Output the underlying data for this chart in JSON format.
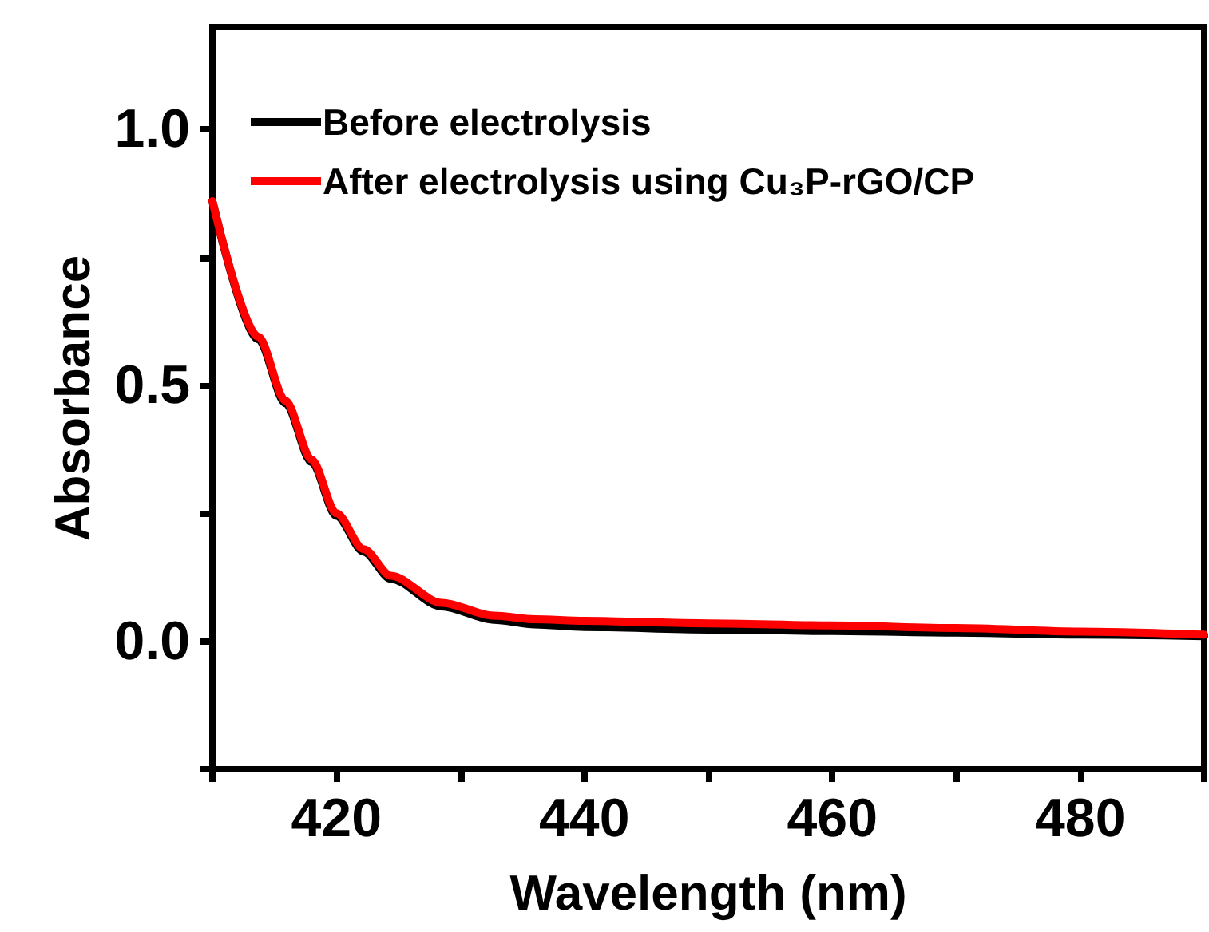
{
  "chart_data": {
    "type": "line",
    "xlabel": "Wavelength (nm)",
    "ylabel": "Absorbance",
    "xlim": [
      410,
      490
    ],
    "ylim": [
      -0.25,
      1.2
    ],
    "xticks": [
      {
        "value": 410,
        "label": null
      },
      420,
      {
        "value": 430,
        "label": null
      },
      440,
      {
        "value": 450,
        "label": null
      },
      460,
      {
        "value": 470,
        "label": null
      },
      480,
      {
        "value": 490,
        "label": null
      }
    ],
    "yticks": [
      {
        "value": -0.25,
        "label": null
      },
      {
        "value": 0,
        "label": "0.0"
      },
      {
        "value": 0.25,
        "label": null
      },
      {
        "value": 0.5,
        "label": "0.5"
      },
      {
        "value": 0.75,
        "label": null
      },
      {
        "value": 1,
        "label": "1.0"
      }
    ],
    "grid": false,
    "legend": "top left",
    "marker": "none",
    "line_style": "solid",
    "series": [
      {
        "name": "Before electrolysis",
        "color": "#000000",
        "x": [
          410,
          413.7,
          415.9,
          418,
          420,
          422.2,
          424.4,
          428.5,
          432.7,
          436,
          440,
          450,
          460,
          470,
          480,
          490
        ],
        "values": [
          0.86,
          0.59,
          0.465,
          0.35,
          0.245,
          0.175,
          0.122,
          0.068,
          0.042,
          0.033,
          0.028,
          0.023,
          0.02,
          0.017,
          0.013,
          0.01
        ]
      },
      {
        "name": "After electrolysis using Cu₃P-rGO/CP",
        "color": "#ff0000",
        "x": [
          410,
          413.7,
          415.9,
          418,
          420,
          422.2,
          424.4,
          428.5,
          432.7,
          436,
          440,
          450,
          460,
          470,
          480,
          490
        ],
        "values": [
          0.86,
          0.595,
          0.47,
          0.355,
          0.25,
          0.18,
          0.128,
          0.075,
          0.05,
          0.043,
          0.04,
          0.035,
          0.031,
          0.026,
          0.019,
          0.013
        ]
      }
    ]
  }
}
